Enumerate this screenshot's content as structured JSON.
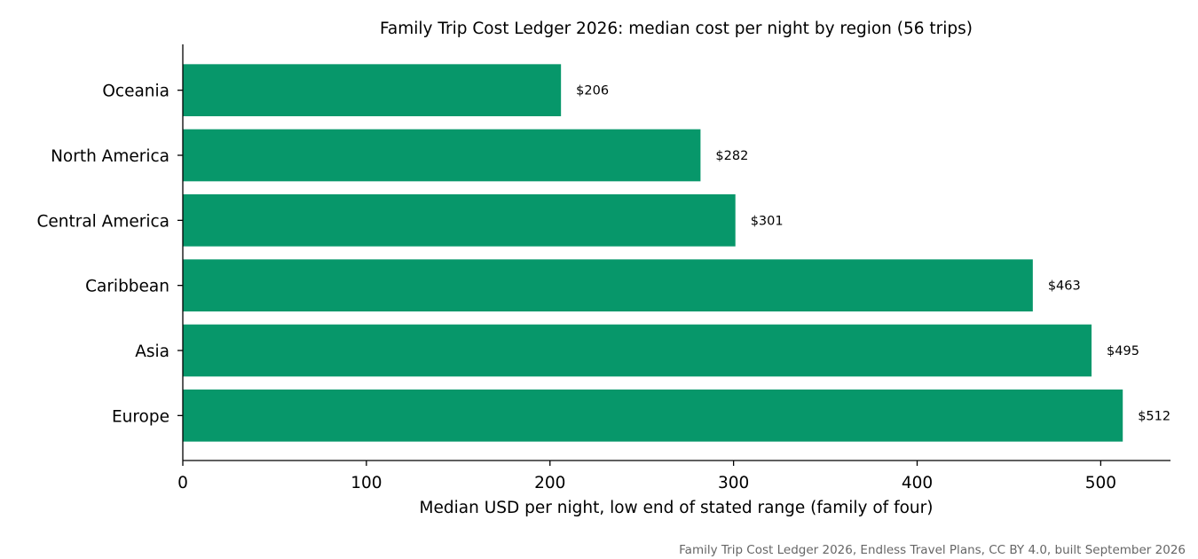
{
  "chart_data": {
    "type": "bar",
    "orientation": "horizontal",
    "title": "Family Trip Cost Ledger 2026: median cost per night by region (56 trips)",
    "xlabel": "Median USD per night, low end of stated range (family of four)",
    "ylabel": "",
    "categories": [
      "Oceania",
      "North America",
      "Central America",
      "Caribbean",
      "Asia",
      "Europe"
    ],
    "values": [
      206,
      282,
      301,
      463,
      495,
      512
    ],
    "value_labels": [
      "$206",
      "$282",
      "$301",
      "$463",
      "$495",
      "$512"
    ],
    "xlim": [
      0,
      538
    ],
    "xticks": [
      0,
      100,
      200,
      300,
      400,
      500
    ],
    "xtick_labels": [
      "0",
      "100",
      "200",
      "300",
      "400",
      "500"
    ],
    "grid": false,
    "legend": "none",
    "bar_color": "#07976a",
    "source_note": "Family Trip Cost Ledger 2026, Endless Travel Plans, CC BY 4.0, built September 2026"
  }
}
